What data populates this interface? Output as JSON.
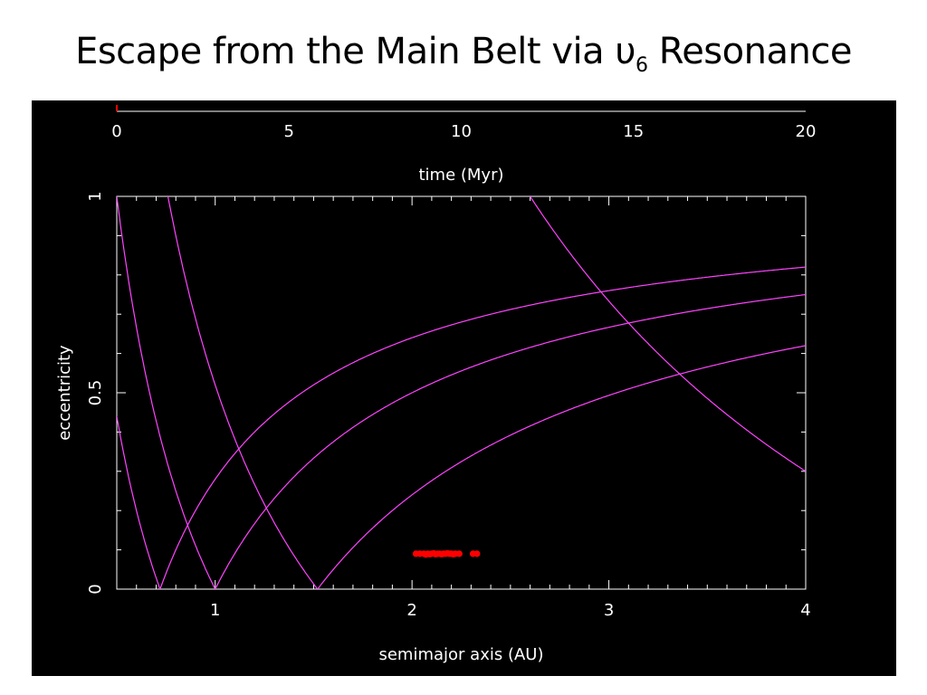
{
  "slide": {
    "title_main": "Escape from the Main Belt via υ",
    "title_sub": "6",
    "title_tail": " Resonance"
  },
  "chart_data": [
    {
      "type": "line",
      "role": "time progress axis",
      "xlabel": "time (Myr)",
      "xlim": [
        0,
        20
      ],
      "x_ticks": [
        0,
        5,
        10,
        15,
        20
      ],
      "x_tick_labels": [
        "0",
        "5",
        "10",
        "15",
        "20"
      ],
      "current_time": 0,
      "colors": {
        "axis": "#ffffff",
        "progress": "#ff0000"
      }
    },
    {
      "type": "scatter",
      "xlabel": "semimajor axis (AU)",
      "ylabel": "eccentricity",
      "xlim": [
        0.5,
        4
      ],
      "ylim": [
        0,
        1
      ],
      "x_ticks": [
        1,
        2,
        3,
        4
      ],
      "x_tick_labels": [
        "1",
        "2",
        "3",
        "4"
      ],
      "y_ticks": [
        0,
        0.5,
        1
      ],
      "y_tick_labels": [
        "0",
        "0.5",
        "1"
      ],
      "x_minor_step": 0.1,
      "y_minor_step": 0.1,
      "series": [
        {
          "kind": "points",
          "color": "#ff0000",
          "x": [
            2.02,
            2.04,
            2.06,
            2.07,
            2.08,
            2.09,
            2.1,
            2.11,
            2.12,
            2.13,
            2.14,
            2.15,
            2.16,
            2.17,
            2.18,
            2.19,
            2.2,
            2.21,
            2.22,
            2.24,
            2.31,
            2.33
          ],
          "y": [
            0.09,
            0.09,
            0.09,
            0.088,
            0.09,
            0.089,
            0.09,
            0.091,
            0.089,
            0.09,
            0.09,
            0.089,
            0.09,
            0.09,
            0.091,
            0.09,
            0.09,
            0.089,
            0.09,
            0.09,
            0.09,
            0.09
          ]
        }
      ],
      "curves": {
        "color": "#ff44ff",
        "perihelion_crossing_au": [
          0.72,
          1.0,
          1.52
        ],
        "aphelion_crossing_au": [
          5.2
        ]
      }
    }
  ]
}
